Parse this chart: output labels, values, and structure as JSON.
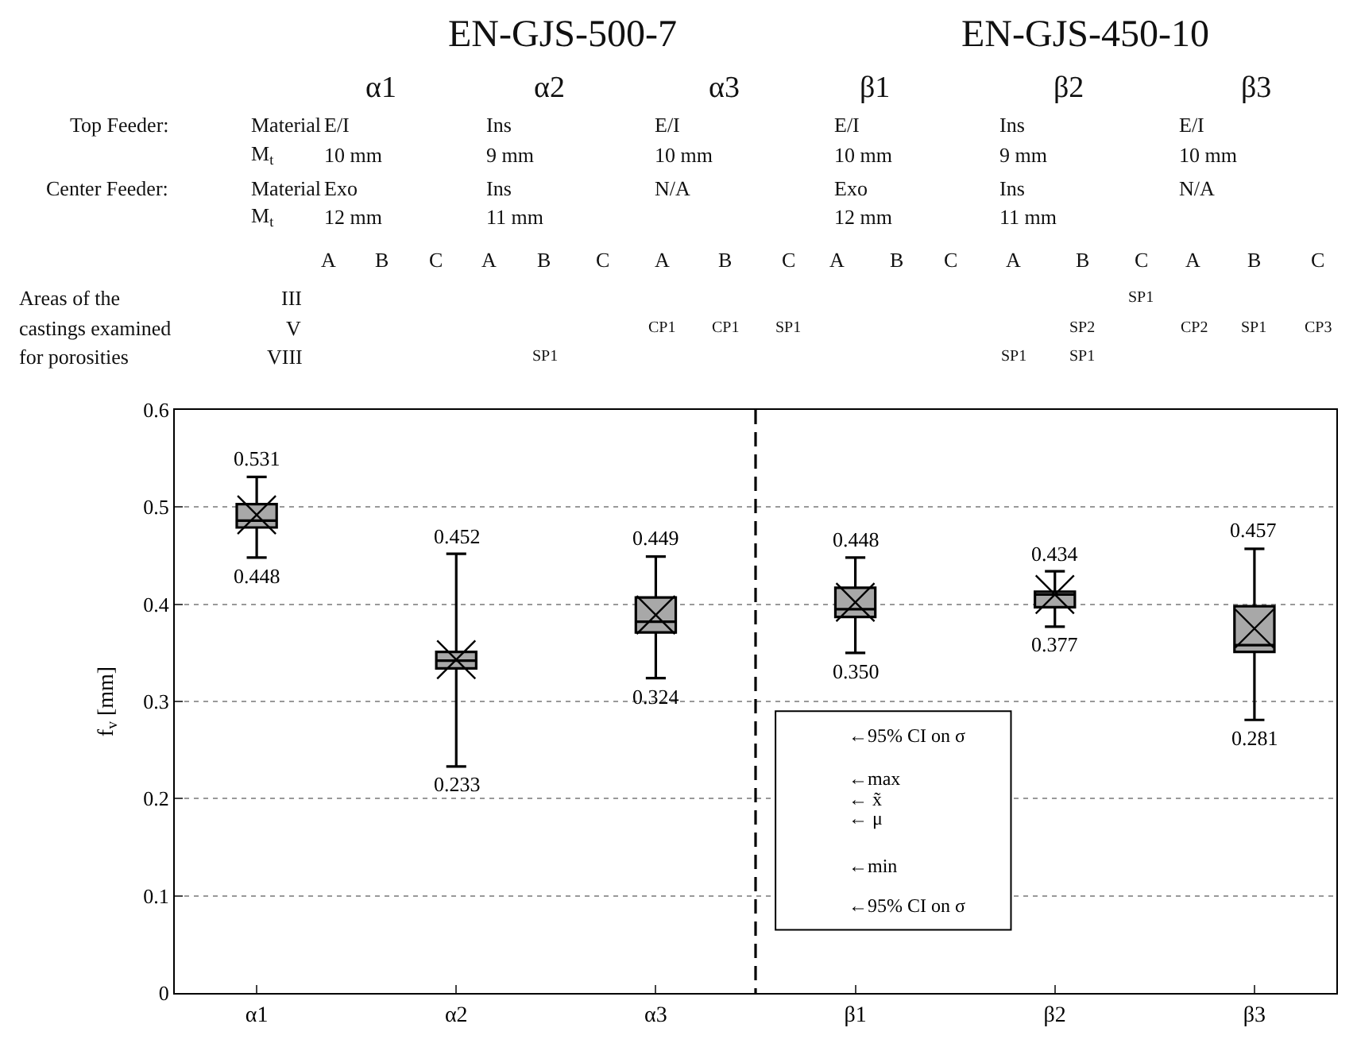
{
  "chart_data": [
    {
      "type": "other",
      "annotations": [
        "EN-GJS-500-7",
        "EN-GJS-450-10",
        "α1",
        "α2",
        "α3",
        "β1",
        "β2",
        "β3",
        "Top Feeder:",
        "Material",
        "M$_{t}$",
        "Center Feeder:",
        "Material",
        "M$_{t}$",
        "E/I",
        "10 mm",
        "Exo",
        "12 mm",
        "Ins",
        "9 mm",
        "Ins",
        "11 mm",
        "E/I",
        "10 mm",
        "N/A",
        "E/I",
        "10 mm",
        "Exo",
        "12 mm",
        "Ins",
        "9 mm",
        "Ins",
        "11 mm",
        "E/I",
        "10 mm",
        "N/A",
        "A",
        "B",
        "C",
        "A",
        "B",
        "C",
        "A",
        "B",
        "C",
        "A",
        "B",
        "C",
        "A",
        "B",
        "C",
        "A",
        "B",
        "C",
        "Areas of the",
        "castings examined",
        "for porosities",
        "III",
        "V",
        "VIII",
        "SP1",
        "CP1",
        "CP1",
        "SP1",
        "SP2",
        "CP2",
        "SP1",
        "CP3",
        "SP1",
        "SP1",
        "SP1"
      ]
    },
    {
      "type": "box",
      "categories": [
        "α1",
        "α2",
        "α3",
        "β1",
        "β2",
        "β3"
      ],
      "boxes": [
        {
          "low": 0.448,
          "q1": 0.479,
          "median": 0.486,
          "q3": 0.503,
          "high": 0.531,
          "mean": 0.492
        },
        {
          "low": 0.233,
          "q1": 0.334,
          "median": 0.342,
          "q3": 0.351,
          "high": 0.452,
          "mean": 0.343
        },
        {
          "low": 0.324,
          "q1": 0.371,
          "median": 0.382,
          "q3": 0.407,
          "high": 0.449,
          "mean": 0.389
        },
        {
          "low": 0.35,
          "q1": 0.387,
          "median": 0.395,
          "q3": 0.417,
          "high": 0.448,
          "mean": 0.402
        },
        {
          "low": 0.377,
          "q1": 0.397,
          "median": 0.41,
          "q3": 0.413,
          "high": 0.434,
          "mean": 0.41
        },
        {
          "low": 0.281,
          "q1": 0.351,
          "median": 0.358,
          "q3": 0.398,
          "high": 0.457,
          "mean": 0.375
        }
      ],
      "color": "#a8a8a8",
      "ylabel": "f$_{v}$ [mm]",
      "ylim": [
        0,
        0.6
      ],
      "yticks": [
        0,
        0.1,
        0.2,
        0.3,
        0.4,
        0.5,
        0.6
      ],
      "grid": "y",
      "annotations": [
        "←95% CI on σ",
        "←max",
        "← x̃",
        "← μ",
        "←min",
        "←95% CI on σ",
        {
          "text": "0.531",
          "x": "α1",
          "y": 0.531
        },
        {
          "text": "0.448",
          "x": "α1",
          "y": 0.448
        },
        {
          "text": "0.452",
          "x": "α2",
          "y": 0.452
        },
        {
          "text": "0.233",
          "x": "α2",
          "y": 0.233
        },
        {
          "text": "0.449",
          "x": "α3",
          "y": 0.449
        },
        {
          "text": "0.324",
          "x": "α3",
          "y": 0.324
        },
        {
          "text": "0.448",
          "x": "β1",
          "y": 0.448
        },
        {
          "text": "0.350",
          "x": "β1",
          "y": 0.35
        },
        {
          "text": "0.434",
          "x": "β2",
          "y": 0.434
        },
        {
          "text": "0.377",
          "x": "β2",
          "y": 0.377
        },
        {
          "text": "0.457",
          "x": "β3",
          "y": 0.457
        },
        {
          "text": "0.281",
          "x": "β3",
          "y": 0.281
        }
      ]
    }
  ]
}
